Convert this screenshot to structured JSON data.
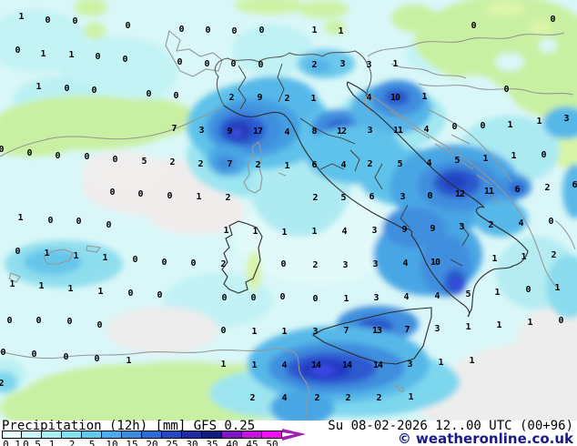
{
  "legend": {
    "title": "Precipitation (12h) [mm] GFS 0.25",
    "datetime": "Su 08-02-2026 12..00 UTC (00+96)",
    "copyright": "© weatheronline.co.uk",
    "scale": {
      "values": [
        "0.1",
        "0.5",
        "1",
        "2",
        "5",
        "10",
        "15",
        "20",
        "25",
        "30",
        "35",
        "40",
        "45",
        "50"
      ],
      "colors": [
        "#eafcfc",
        "#c8f5f7",
        "#a8eef2",
        "#80e0f0",
        "#60c9ec",
        "#4cabe8",
        "#3c8de0",
        "#2e6cd5",
        "#2448c0",
        "#1c2da2",
        "#131b7e",
        "#8216c6",
        "#c214da",
        "#f00ff0"
      ],
      "arrow_color": "#a21fb2"
    }
  },
  "map": {
    "parameter": "Precipitation (12h)",
    "unit": "mm",
    "model": "GFS 0.25",
    "valid": "Su 08-02-2026 12..00 UTC",
    "forecast_step": "00+96",
    "colors": {
      "sea_trace": "#d9f7f8",
      "land_zero_green": "#c9f0a2",
      "no_precip_gray": "#ededed",
      "value_text": "#000000",
      "coast_dark": "#2d2d2d",
      "border_gray": "#979797"
    },
    "values": [
      [
        23,
        19,
        "1"
      ],
      [
        52,
        23,
        "0"
      ],
      [
        82,
        24,
        "0"
      ],
      [
        140,
        29,
        "0"
      ],
      [
        199,
        33,
        "0"
      ],
      [
        228,
        34,
        "0"
      ],
      [
        257,
        35,
        "0"
      ],
      [
        287,
        34,
        "0"
      ],
      [
        345,
        34,
        "1"
      ],
      [
        374,
        35,
        "1"
      ],
      [
        520,
        29,
        "0"
      ],
      [
        607,
        22,
        "0"
      ],
      [
        19,
        56,
        "0"
      ],
      [
        47,
        60,
        "1"
      ],
      [
        78,
        61,
        "1"
      ],
      [
        107,
        63,
        "0"
      ],
      [
        137,
        66,
        "0"
      ],
      [
        197,
        69,
        "0"
      ],
      [
        227,
        71,
        "0"
      ],
      [
        256,
        71,
        "0"
      ],
      [
        286,
        72,
        "0"
      ],
      [
        345,
        72,
        "2"
      ],
      [
        376,
        71,
        "3"
      ],
      [
        405,
        72,
        "3"
      ],
      [
        434,
        71,
        "1"
      ],
      [
        42,
        96,
        "1"
      ],
      [
        73,
        98,
        "0"
      ],
      [
        103,
        100,
        "0"
      ],
      [
        163,
        104,
        "0"
      ],
      [
        193,
        106,
        "0"
      ],
      [
        254,
        108,
        "2"
      ],
      [
        285,
        108,
        "9"
      ],
      [
        315,
        109,
        "2"
      ],
      [
        344,
        109,
        "1"
      ],
      [
        405,
        108,
        "4"
      ],
      [
        434,
        108,
        "10"
      ],
      [
        466,
        107,
        "1"
      ],
      [
        556,
        99,
        "0"
      ],
      [
        191,
        142,
        "7"
      ],
      [
        221,
        144,
        "3"
      ],
      [
        252,
        145,
        "9"
      ],
      [
        283,
        145,
        "17"
      ],
      [
        315,
        146,
        "4"
      ],
      [
        345,
        145,
        "8"
      ],
      [
        375,
        145,
        "12"
      ],
      [
        406,
        144,
        "3"
      ],
      [
        437,
        144,
        "11"
      ],
      [
        468,
        143,
        "4"
      ],
      [
        499,
        140,
        "0"
      ],
      [
        530,
        139,
        "0"
      ],
      [
        560,
        138,
        "1"
      ],
      [
        592,
        134,
        "1"
      ],
      [
        622,
        131,
        "3"
      ],
      [
        1,
        165,
        "0"
      ],
      [
        32,
        169,
        "0"
      ],
      [
        63,
        172,
        "0"
      ],
      [
        95,
        173,
        "0"
      ],
      [
        126,
        176,
        "0"
      ],
      [
        158,
        178,
        "5"
      ],
      [
        189,
        179,
        "2"
      ],
      [
        220,
        181,
        "2"
      ],
      [
        252,
        181,
        "7"
      ],
      [
        283,
        182,
        "2"
      ],
      [
        315,
        183,
        "1"
      ],
      [
        345,
        182,
        "6"
      ],
      [
        377,
        182,
        "4"
      ],
      [
        406,
        181,
        "2"
      ],
      [
        439,
        181,
        "5"
      ],
      [
        471,
        180,
        "4"
      ],
      [
        502,
        177,
        "5"
      ],
      [
        533,
        175,
        "1"
      ],
      [
        564,
        172,
        "1"
      ],
      [
        597,
        171,
        "0"
      ],
      [
        123,
        212,
        "0"
      ],
      [
        154,
        214,
        "0"
      ],
      [
        186,
        216,
        "0"
      ],
      [
        218,
        217,
        "1"
      ],
      [
        250,
        218,
        "2"
      ],
      [
        346,
        218,
        "2"
      ],
      [
        377,
        218,
        "5"
      ],
      [
        408,
        217,
        "6"
      ],
      [
        442,
        217,
        "3"
      ],
      [
        472,
        216,
        "0"
      ],
      [
        505,
        214,
        "12"
      ],
      [
        537,
        211,
        "11"
      ],
      [
        568,
        209,
        "6"
      ],
      [
        601,
        207,
        "2"
      ],
      [
        631,
        204,
        "6"
      ],
      [
        22,
        240,
        "1"
      ],
      [
        55,
        243,
        "0"
      ],
      [
        86,
        244,
        "0"
      ],
      [
        119,
        248,
        "0"
      ],
      [
        248,
        254,
        "1"
      ],
      [
        280,
        255,
        "1"
      ],
      [
        312,
        256,
        "1"
      ],
      [
        345,
        255,
        "1"
      ],
      [
        378,
        255,
        "4"
      ],
      [
        411,
        254,
        "3"
      ],
      [
        444,
        253,
        "9"
      ],
      [
        475,
        252,
        "9"
      ],
      [
        507,
        250,
        "3"
      ],
      [
        539,
        248,
        "2"
      ],
      [
        572,
        246,
        "4"
      ],
      [
        605,
        244,
        "0"
      ],
      [
        19,
        277,
        "0"
      ],
      [
        51,
        279,
        "1"
      ],
      [
        83,
        282,
        "1"
      ],
      [
        115,
        284,
        "1"
      ],
      [
        148,
        286,
        "0"
      ],
      [
        180,
        289,
        "0"
      ],
      [
        212,
        290,
        "0"
      ],
      [
        245,
        291,
        "2"
      ],
      [
        311,
        291,
        "0"
      ],
      [
        346,
        292,
        "2"
      ],
      [
        379,
        292,
        "3"
      ],
      [
        412,
        291,
        "3"
      ],
      [
        445,
        290,
        "4"
      ],
      [
        478,
        289,
        "10"
      ],
      [
        543,
        285,
        "1"
      ],
      [
        575,
        283,
        "1"
      ],
      [
        608,
        281,
        "2"
      ],
      [
        13,
        313,
        "1"
      ],
      [
        45,
        315,
        "1"
      ],
      [
        77,
        318,
        "1"
      ],
      [
        110,
        321,
        "1"
      ],
      [
        143,
        323,
        "0"
      ],
      [
        175,
        325,
        "0"
      ],
      [
        246,
        328,
        "0"
      ],
      [
        278,
        328,
        "0"
      ],
      [
        310,
        327,
        "0"
      ],
      [
        346,
        329,
        "0"
      ],
      [
        380,
        329,
        "1"
      ],
      [
        413,
        328,
        "3"
      ],
      [
        446,
        327,
        "4"
      ],
      [
        480,
        326,
        "4"
      ],
      [
        514,
        324,
        "5"
      ],
      [
        546,
        322,
        "1"
      ],
      [
        580,
        319,
        "0"
      ],
      [
        612,
        317,
        "1"
      ],
      [
        10,
        353,
        "0"
      ],
      [
        42,
        353,
        "0"
      ],
      [
        76,
        354,
        "0"
      ],
      [
        109,
        358,
        "0"
      ],
      [
        245,
        364,
        "0"
      ],
      [
        279,
        365,
        "1"
      ],
      [
        312,
        365,
        "1"
      ],
      [
        346,
        365,
        "3"
      ],
      [
        380,
        364,
        "7"
      ],
      [
        414,
        364,
        "13"
      ],
      [
        447,
        363,
        "7"
      ],
      [
        480,
        362,
        "3"
      ],
      [
        514,
        360,
        "1"
      ],
      [
        548,
        358,
        "1"
      ],
      [
        582,
        355,
        "1"
      ],
      [
        616,
        353,
        "0"
      ],
      [
        3,
        388,
        "0"
      ],
      [
        37,
        390,
        "0"
      ],
      [
        72,
        393,
        "0"
      ],
      [
        106,
        395,
        "0"
      ],
      [
        141,
        397,
        "1"
      ],
      [
        245,
        401,
        "1"
      ],
      [
        279,
        402,
        "1"
      ],
      [
        312,
        402,
        "4"
      ],
      [
        347,
        402,
        "14"
      ],
      [
        381,
        402,
        "14"
      ],
      [
        415,
        402,
        "14"
      ],
      [
        450,
        401,
        "3"
      ],
      [
        484,
        399,
        "1"
      ],
      [
        518,
        397,
        "1"
      ],
      [
        1,
        422,
        "2"
      ],
      [
        277,
        438,
        "2"
      ],
      [
        312,
        438,
        "4"
      ],
      [
        348,
        438,
        "2"
      ],
      [
        382,
        438,
        "2"
      ],
      [
        416,
        438,
        "2"
      ],
      [
        451,
        437,
        "1"
      ]
    ]
  }
}
